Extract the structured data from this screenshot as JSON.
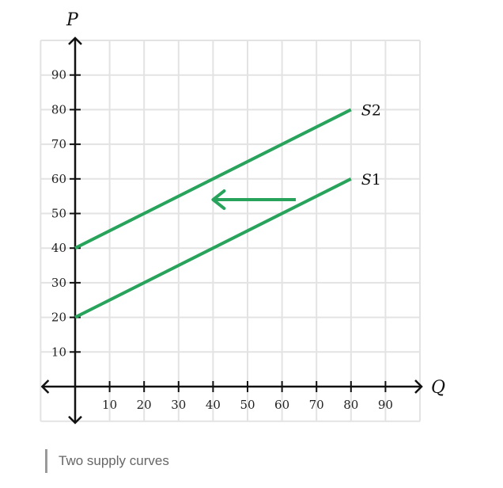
{
  "chart_data": {
    "type": "line",
    "xlabel": "Q",
    "ylabel": "P",
    "xlim": [
      -10,
      100
    ],
    "ylim": [
      -10,
      100
    ],
    "x_ticks": [
      10,
      20,
      30,
      40,
      50,
      60,
      70,
      80,
      90
    ],
    "y_ticks": [
      10,
      20,
      30,
      40,
      50,
      60,
      70,
      80,
      90
    ],
    "grid": true,
    "series": [
      {
        "name": "S2",
        "x": [
          0,
          80
        ],
        "y": [
          40,
          80
        ]
      },
      {
        "name": "S1",
        "x": [
          0,
          80
        ],
        "y": [
          20,
          60
        ]
      }
    ],
    "annotations": [
      {
        "type": "arrow",
        "from": [
          64,
          54
        ],
        "to": [
          40,
          54
        ]
      }
    ],
    "colors": {
      "series": "#28a35b",
      "grid": "#e3e3e3",
      "axis": "#111111"
    }
  },
  "caption": "Two supply curves"
}
